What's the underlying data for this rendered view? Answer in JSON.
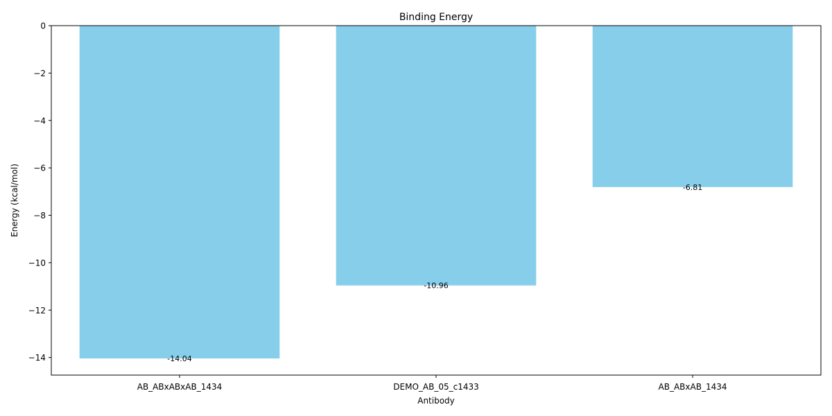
{
  "chart_data": {
    "type": "bar",
    "title": "Binding Energy",
    "xlabel": "Antibody",
    "ylabel": "Energy (kcal/mol)",
    "categories": [
      "AB_ABxABxAB_1434",
      "DEMO_AB_05_c1433",
      "AB_ABxAB_1434"
    ],
    "values": [
      -14.04,
      -10.96,
      -6.81
    ],
    "data_labels": [
      "-14.04",
      "-10.96",
      "-6.81"
    ],
    "ylim": [
      -14.742,
      0
    ],
    "yticks": [
      0,
      -2,
      -4,
      -6,
      -8,
      -10,
      -12,
      -14
    ],
    "ytick_labels": [
      "0",
      "−2",
      "−4",
      "−6",
      "−8",
      "−10",
      "−12",
      "−14"
    ],
    "grid": false,
    "bar_color": "#87ceeb"
  }
}
